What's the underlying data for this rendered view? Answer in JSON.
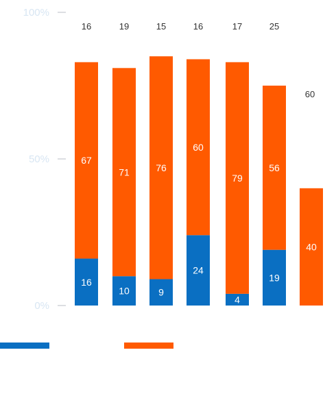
{
  "chart_data": {
    "type": "bar",
    "stacked": true,
    "categories": [
      "",
      "",
      "",
      "",
      "",
      "",
      ""
    ],
    "y_axis": {
      "ticks": [
        "0%",
        "50%",
        "100%"
      ],
      "range": [
        0,
        100
      ]
    },
    "series": [
      {
        "color": "#0a6fc2",
        "values": [
          16,
          10,
          9,
          24,
          4,
          19,
          null
        ],
        "labels": [
          "16",
          "10",
          "9",
          "24",
          "4",
          "19",
          ""
        ]
      },
      {
        "color": "#ff5a00",
        "values": [
          67,
          71,
          76,
          60,
          79,
          56,
          40
        ],
        "labels": [
          "67",
          "71",
          "76",
          "60",
          "79",
          "56",
          "40"
        ]
      }
    ],
    "remainder_values": [
      16,
      19,
      15,
      16,
      17,
      25,
      60
    ],
    "remainder_labels": [
      "16",
      "19",
      "15",
      "16",
      "17",
      "25",
      "60"
    ],
    "legend": {
      "placement": "bottom-left",
      "items": [
        {
          "color": "#0a6fc2"
        },
        {
          "color": "#ff5a00"
        }
      ]
    },
    "grid": false
  }
}
